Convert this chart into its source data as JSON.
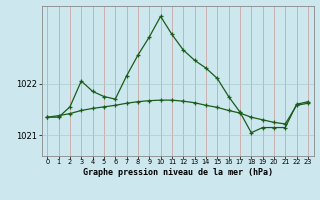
{
  "bg_color": "#cce8ee",
  "grid_color": "#aacccc",
  "line_color": "#1a5c1a",
  "marker_color": "#1a5c1a",
  "title": "Graphe pression niveau de la mer (hPa)",
  "x_ticks": [
    0,
    1,
    2,
    3,
    4,
    5,
    6,
    7,
    8,
    9,
    10,
    11,
    12,
    13,
    14,
    15,
    16,
    17,
    18,
    19,
    20,
    21,
    22,
    23
  ],
  "ylim": [
    1020.6,
    1023.5
  ],
  "yticks": [
    1021,
    1022
  ],
  "series1_x": [
    0,
    1,
    2,
    3,
    4,
    5,
    6,
    7,
    8,
    9,
    10,
    11,
    12,
    13,
    14,
    15,
    16,
    17,
    18,
    19,
    20,
    21,
    22,
    23
  ],
  "series1_y": [
    1021.35,
    1021.35,
    1021.55,
    1022.05,
    1021.85,
    1021.75,
    1021.7,
    1022.15,
    1022.55,
    1022.9,
    1023.3,
    1022.95,
    1022.65,
    1022.45,
    1022.3,
    1022.1,
    1021.75,
    1021.45,
    1021.05,
    1021.15,
    1021.15,
    1021.15,
    1021.6,
    1021.65
  ],
  "series2_x": [
    0,
    1,
    2,
    3,
    4,
    5,
    6,
    7,
    8,
    9,
    10,
    11,
    12,
    13,
    14,
    15,
    16,
    17,
    18,
    19,
    20,
    21,
    22,
    23
  ],
  "series2_y": [
    1021.35,
    1021.38,
    1021.42,
    1021.48,
    1021.52,
    1021.55,
    1021.58,
    1021.62,
    1021.65,
    1021.67,
    1021.68,
    1021.68,
    1021.66,
    1021.63,
    1021.58,
    1021.54,
    1021.48,
    1021.43,
    1021.35,
    1021.3,
    1021.25,
    1021.22,
    1021.58,
    1021.62
  ]
}
